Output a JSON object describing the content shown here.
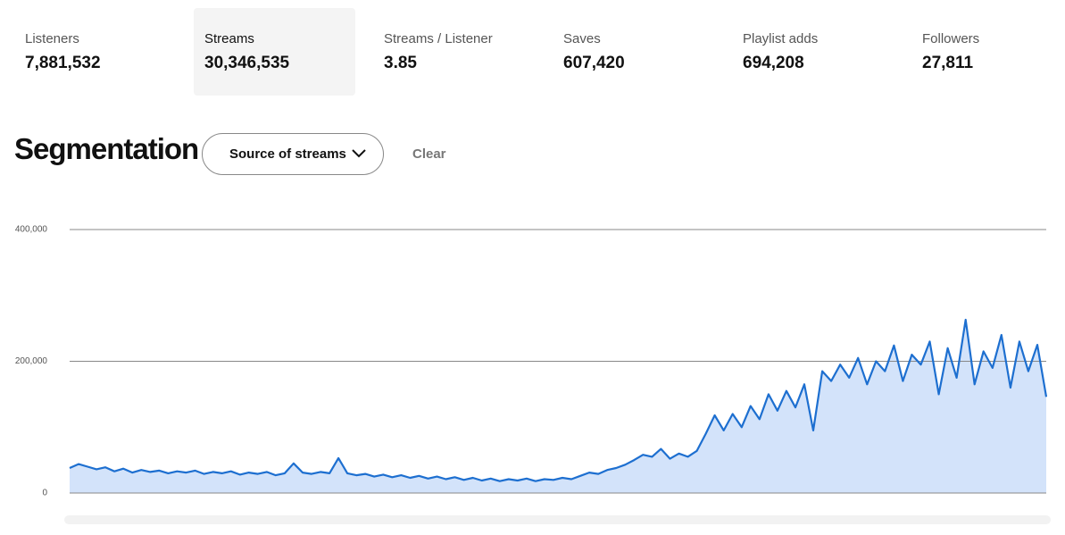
{
  "stats": [
    {
      "label": "Listeners",
      "value": "7,881,532"
    },
    {
      "label": "Streams",
      "value": "30,346,535"
    },
    {
      "label": "Streams / Listener",
      "value": "3.85"
    },
    {
      "label": "Saves",
      "value": "607,420"
    },
    {
      "label": "Playlist adds",
      "value": "694,208"
    },
    {
      "label": "Followers",
      "value": "27,811"
    }
  ],
  "segmentation": {
    "title": "Segmentation",
    "dropdown": "Source of streams",
    "clear": "Clear"
  },
  "chart_data": {
    "type": "area",
    "color": "#1d6fd0",
    "fill": "#d3e3fa",
    "grid": true,
    "ylim": [
      0,
      400000
    ],
    "yticks": [
      {
        "value": 0,
        "label": "0"
      },
      {
        "value": 200000,
        "label": "200,000"
      },
      {
        "value": 400000,
        "label": "400,000"
      }
    ],
    "values": [
      38000,
      44000,
      40000,
      36000,
      39000,
      33000,
      37000,
      31000,
      35000,
      32000,
      34000,
      30000,
      33000,
      31000,
      34000,
      29000,
      32000,
      30000,
      33000,
      28000,
      31000,
      29000,
      32000,
      27000,
      30000,
      45000,
      31000,
      29000,
      32000,
      30000,
      53000,
      30000,
      27000,
      29000,
      25000,
      28000,
      24000,
      27000,
      23000,
      26000,
      22000,
      25000,
      21000,
      24000,
      20000,
      23000,
      19000,
      22000,
      18000,
      21000,
      19000,
      22000,
      18000,
      21000,
      20000,
      23000,
      21000,
      26000,
      31000,
      29000,
      35000,
      38000,
      43000,
      50000,
      58000,
      55000,
      67000,
      52000,
      60000,
      55000,
      64000,
      90000,
      118000,
      95000,
      120000,
      100000,
      132000,
      112000,
      150000,
      125000,
      155000,
      130000,
      165000,
      95000,
      185000,
      170000,
      195000,
      175000,
      205000,
      165000,
      200000,
      185000,
      224000,
      170000,
      210000,
      195000,
      230000,
      150000,
      220000,
      175000,
      263000,
      165000,
      215000,
      190000,
      240000,
      160000,
      230000,
      185000,
      225000,
      146000
    ]
  }
}
